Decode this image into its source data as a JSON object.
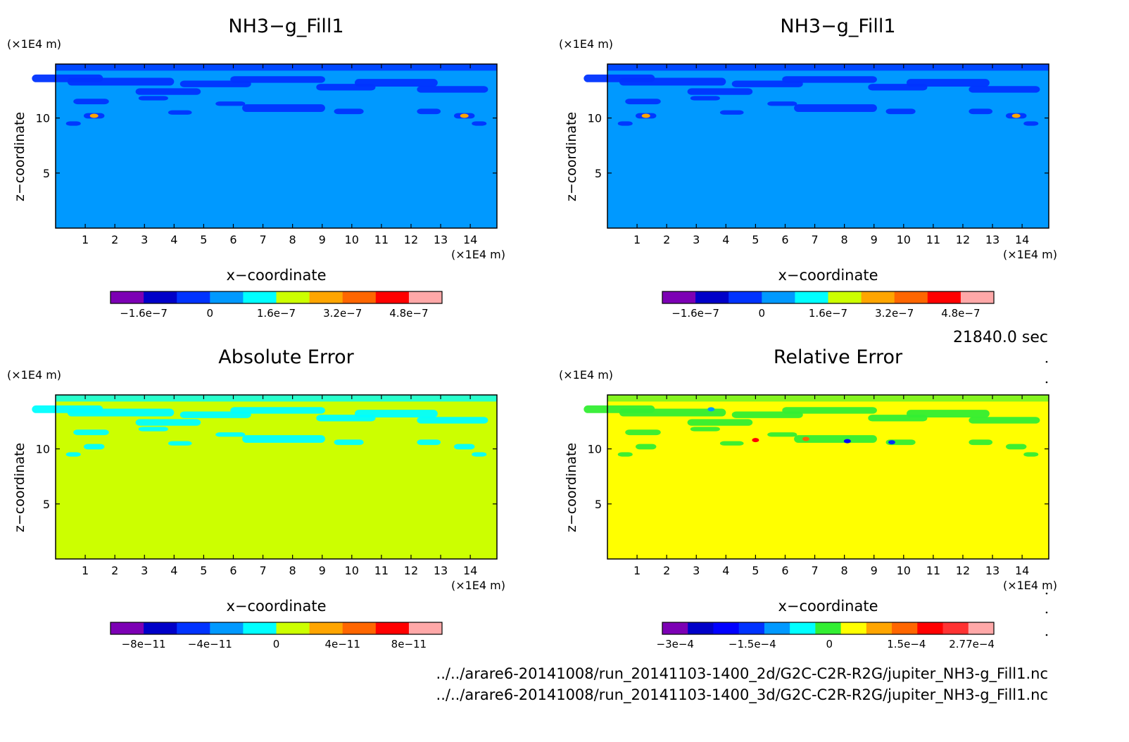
{
  "time_label": "21840.0 sec",
  "files": [
    "../../arare6-20141008/run_20141103-1400_2d/G2C-C2R-R2G/jupiter_NH3-g_Fill1.nc",
    "../../arare6-20141008/run_20141103-1400_3d/G2C-C2R-R2G/jupiter_NH3-g_Fill1.nc"
  ],
  "chart_data": [
    {
      "type": "heatmap",
      "title": "NH3−g_Fill1",
      "xlabel": "x−coordinate",
      "ylabel": "z−coordinate",
      "x_unit": "(×1E4 m)",
      "y_unit": "(×1E4 m)",
      "xlim": [
        0,
        14.9
      ],
      "ylim": [
        0,
        14.9
      ],
      "x_ticks": [
        1,
        2,
        3,
        4,
        5,
        6,
        7,
        8,
        9,
        10,
        11,
        12,
        13,
        14
      ],
      "y_ticks": [
        5,
        10
      ],
      "background_color": "#0099ff",
      "colorbar": {
        "colors": [
          "#7c00b4",
          "#0000c8",
          "#0033ff",
          "#0099ff",
          "#00ffff",
          "#ccff00",
          "#ffa500",
          "#ff6600",
          "#ff0000",
          "#ffa8a8"
        ],
        "tick_labels": [
          "−1.6e−7",
          "0",
          "1.6e−7",
          "3.2e−7",
          "4.8e−7"
        ],
        "tick_values": [
          -1.6e-07,
          0,
          1.6e-07,
          3.2e-07,
          4.8e-07
        ],
        "min": -2.4e-07,
        "max": 5.6e-07
      }
    },
    {
      "type": "heatmap",
      "title": "NH3−g_Fill1",
      "xlabel": "x−coordinate",
      "ylabel": "z−coordinate",
      "x_unit": "(×1E4 m)",
      "y_unit": "(×1E4 m)",
      "xlim": [
        0,
        14.9
      ],
      "ylim": [
        0,
        14.9
      ],
      "x_ticks": [
        1,
        2,
        3,
        4,
        5,
        6,
        7,
        8,
        9,
        10,
        11,
        12,
        13,
        14
      ],
      "y_ticks": [
        5,
        10
      ],
      "background_color": "#0099ff",
      "colorbar": {
        "colors": [
          "#7c00b4",
          "#0000c8",
          "#0033ff",
          "#0099ff",
          "#00ffff",
          "#ccff00",
          "#ffa500",
          "#ff6600",
          "#ff0000",
          "#ffa8a8"
        ],
        "tick_labels": [
          "−1.6e−7",
          "0",
          "1.6e−7",
          "3.2e−7",
          "4.8e−7"
        ],
        "tick_values": [
          -1.6e-07,
          0,
          1.6e-07,
          3.2e-07,
          4.8e-07
        ],
        "min": -2.4e-07,
        "max": 5.6e-07
      }
    },
    {
      "type": "heatmap",
      "title": "Absolute Error",
      "xlabel": "x−coordinate",
      "ylabel": "z−coordinate",
      "x_unit": "(×1E4 m)",
      "y_unit": "(×1E4 m)",
      "xlim": [
        0,
        14.9
      ],
      "ylim": [
        0,
        14.9
      ],
      "x_ticks": [
        1,
        2,
        3,
        4,
        5,
        6,
        7,
        8,
        9,
        10,
        11,
        12,
        13,
        14
      ],
      "y_ticks": [
        5,
        10
      ],
      "background_color": "#ccff00",
      "colorbar": {
        "colors": [
          "#7c00b4",
          "#0000c8",
          "#0033ff",
          "#0099ff",
          "#00ffff",
          "#ccff00",
          "#ffa500",
          "#ff6600",
          "#ff0000",
          "#ffa8a8"
        ],
        "tick_labels": [
          "−8e−11",
          "−4e−11",
          "0",
          "4e−11",
          "8e−11"
        ],
        "tick_values": [
          -8e-11,
          -4e-11,
          0,
          4e-11,
          8e-11
        ],
        "min": -1e-10,
        "max": 1e-10
      }
    },
    {
      "type": "heatmap",
      "title": "Relative Error",
      "xlabel": "x−coordinate",
      "ylabel": "z−coordinate",
      "x_unit": "(×1E4 m)",
      "y_unit": "(×1E4 m)",
      "xlim": [
        0,
        14.9
      ],
      "ylim": [
        0,
        14.9
      ],
      "x_ticks": [
        1,
        2,
        3,
        4,
        5,
        6,
        7,
        8,
        9,
        10,
        11,
        12,
        13,
        14
      ],
      "y_ticks": [
        5,
        10
      ],
      "background_color": "#ffff00",
      "colorbar": {
        "colors": [
          "#7c00b4",
          "#0000c8",
          "#0000ff",
          "#0033ff",
          "#0099ff",
          "#00ffff",
          "#33ee33",
          "#ffff00",
          "#ffa500",
          "#ff6600",
          "#ff0000",
          "#ff3333",
          "#ffa8a8"
        ],
        "tick_labels": [
          "−3e−4",
          "−1.5e−4",
          "0",
          "1.5e−4",
          "2.77e−4"
        ],
        "tick_values": [
          -0.0003,
          -0.00015,
          0,
          0.00015,
          0.000277
        ],
        "min": -0.000325,
        "max": 0.00032
      }
    }
  ]
}
